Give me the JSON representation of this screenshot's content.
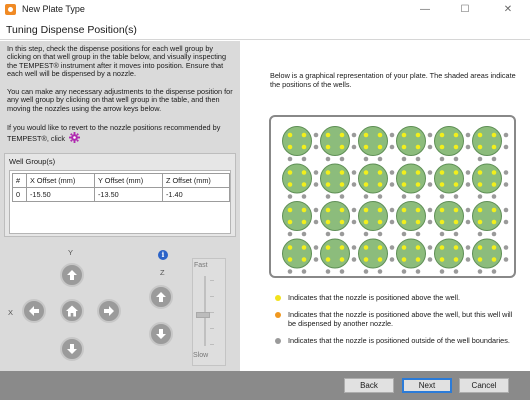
{
  "window": {
    "title": "New Plate Type",
    "minimize": "—",
    "maximize": "☐",
    "close": "✕"
  },
  "page_title": "Tuning Dispense Position(s)",
  "instructions": {
    "p1": "In this step, check the dispense positions for each well group by clicking on that well group in the table below, and visually inspecting the TEMPEST® instrument after it moves into position. Ensure that each well will be dispensed by a nozzle.",
    "p2": "You can make any necessary adjustments to the dispense position for any well group by clicking on that well group in the table, and then moving the nozzles using the arrow keys below.",
    "p3": "If you would like to revert to the nozzle positions recommended by TEMPEST®, click"
  },
  "well_group": {
    "label": "Well Group(s)",
    "columns": [
      "#",
      "X Offset (mm)",
      "Y Offset (mm)",
      "Z Offset (mm)"
    ],
    "rows": [
      [
        "0",
        "-15.50",
        "-13.50",
        "-1.40"
      ]
    ]
  },
  "controls": {
    "x_label": "X",
    "y_label": "Y",
    "z_label": "Z",
    "info_glyph": "i",
    "speed_fast": "Fast",
    "speed_slow": "Slow",
    "speed_level": 0.45
  },
  "right": {
    "description": "Below is a graphical representation of your plate. The shaded areas indicate the positions of the wells.",
    "plate": {
      "rows": 4,
      "cols": 6,
      "well_color": "#8cbc7c",
      "well_border": "#5f8f56",
      "inside_dot_color": "#f2ef1c",
      "outside_dot_color": "#9a9a9a"
    },
    "legend": [
      {
        "color": "#f2e21c",
        "text": "Indicates that the nozzle is positioned above the well."
      },
      {
        "color": "#f0981f",
        "text": "Indicates that the nozzle is positioned above the well, but this well will be dispensed by another nozzle."
      },
      {
        "color": "#9a9a9a",
        "text": "Indicates that the nozzle is positioned outside of the well boundaries."
      }
    ]
  },
  "buttons": {
    "back": "Back",
    "next": "Next",
    "cancel": "Cancel"
  }
}
